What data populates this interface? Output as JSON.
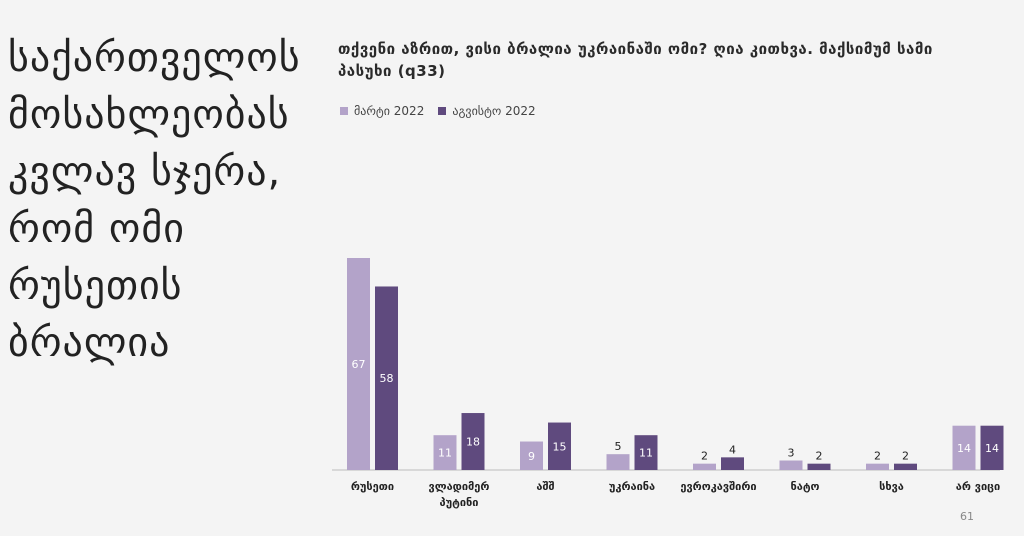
{
  "headline": "საქართველოს მოსახლეობას კვლავ სჯერა, რომ ომი რუსეთის ბრალია",
  "page_number": "61",
  "colors": {
    "series1": "#b3a3c9",
    "series2": "#5f4a7e",
    "axis": "#bbbbbb",
    "background": "#f4f4f4"
  },
  "chart_data": {
    "type": "bar",
    "title": "თქვენი აზრით, ვისი ბრალია უკრაინაში ომი? ღია კითხვა. მაქსიმუმ სამი პასუხი (q33)",
    "categories": [
      "რუსეთი",
      "ვლადიმერ პუტინი",
      "აშშ",
      "უკრაინა",
      "ევროკავშირი",
      "ნატო",
      "სხვა",
      "არ ვიცი"
    ],
    "series": [
      {
        "name": "მარტი 2022",
        "values": [
          67,
          11,
          9,
          5,
          2,
          3,
          2,
          14
        ]
      },
      {
        "name": "აგვისტო 2022",
        "values": [
          58,
          18,
          15,
          11,
          4,
          2,
          2,
          14
        ]
      }
    ],
    "ylim": [
      0,
      70
    ],
    "grid": false,
    "legend": "top-left"
  }
}
